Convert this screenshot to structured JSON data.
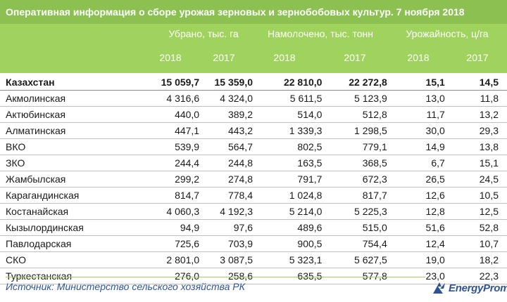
{
  "title": "Оперативная информация о сборе урожая зерновых и зернобобовых культур. 7 ноября 2018",
  "groups": [
    {
      "label": "Убрано, тыс. га",
      "years": [
        "2018",
        "2017"
      ]
    },
    {
      "label": "Намолочено, тыс. тонн",
      "years": [
        "2018",
        "2017"
      ]
    },
    {
      "label": "Урожайность, ц/га",
      "years": [
        "2018",
        "2017"
      ]
    }
  ],
  "rows": [
    [
      "Казахстан",
      "15 059,7",
      "15 359,0",
      "22 810,0",
      "22 272,8",
      "15,1",
      "14,5"
    ],
    [
      "Акмолинская",
      "4 316,6",
      "4 324,0",
      "5 611,5",
      "5 123,9",
      "13,0",
      "11,8"
    ],
    [
      "Актюбинская",
      "440,0",
      "389,2",
      "514,0",
      "512,8",
      "11,7",
      "13,2"
    ],
    [
      "Алматинская",
      "447,1",
      "443,2",
      "1 339,3",
      "1 298,5",
      "30,0",
      "29,3"
    ],
    [
      "ВКО",
      "539,9",
      "564,7",
      "802,5",
      "779,1",
      "14,9",
      "13,8"
    ],
    [
      "ЗКО",
      "244,4",
      "244,8",
      "163,5",
      "368,5",
      "6,7",
      "15,1"
    ],
    [
      "Жамбылская",
      "299,2",
      "274,8",
      "791,7",
      "672,3",
      "26,5",
      "24,5"
    ],
    [
      "Карагандинская",
      "814,7",
      "778,4",
      "1 024,8",
      "817,7",
      "12,6",
      "10,5"
    ],
    [
      "Костанайская",
      "4 060,3",
      "4 192,3",
      "5 214,0",
      "5 225,3",
      "12,8",
      "12,5"
    ],
    [
      "Кызылординская",
      "94,9",
      "97,6",
      "489,6",
      "515,0",
      "51,6",
      "52,8"
    ],
    [
      "Павлодарская",
      "725,6",
      "703,9",
      "900,5",
      "754,4",
      "12,4",
      "10,7"
    ],
    [
      "СКО",
      "2 801,0",
      "3 087,5",
      "5 323,1",
      "5 627,5",
      "19,0",
      "18,2"
    ],
    [
      "Туркестанская",
      "276,0",
      "258,6",
      "635,5",
      "577,8",
      "23,0",
      "22,3"
    ]
  ],
  "source": "Источник: Министерство сельского хозяйства РК",
  "logo_text": "EnergyProm",
  "colors": {
    "title_bg": "#8cc152",
    "header_bg": "#9fd35d",
    "source_text": "#2f5496"
  }
}
